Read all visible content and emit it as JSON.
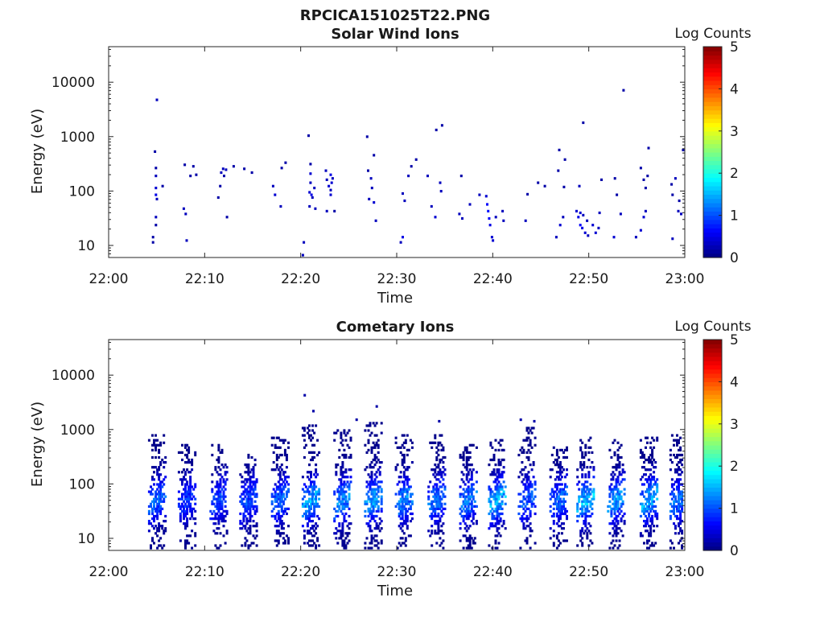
{
  "figure_title": "RPCICA151025T22.PNG",
  "chart_data": [
    {
      "type": "heatmap",
      "title": "Solar Wind Ions",
      "xlabel": "Time",
      "ylabel": "Energy (eV)",
      "x_ticks": [
        "22:00",
        "22:10",
        "22:20",
        "22:30",
        "22:40",
        "22:50",
        "23:00"
      ],
      "x_range": [
        "22:00",
        "23:00"
      ],
      "y_scale": "log",
      "y_range": [
        6,
        45000
      ],
      "y_ticks": [
        "10",
        "100",
        "1000",
        "10000"
      ],
      "colorbar": {
        "label": "Log Counts",
        "range": [
          0,
          5
        ],
        "ticks": [
          "0",
          "1",
          "2",
          "3",
          "4",
          "5"
        ],
        "colormap": "jet"
      },
      "grid": false,
      "cells": [
        [
          4.5,
          12,
          0.2
        ],
        [
          4.5,
          15,
          0.2
        ],
        [
          4.9,
          5000,
          0.3
        ],
        [
          4.7,
          560,
          0.2
        ],
        [
          4.8,
          280,
          0.2
        ],
        [
          4.8,
          200,
          0.3
        ],
        [
          4.8,
          120,
          0.4
        ],
        [
          4.8,
          90,
          0.5
        ],
        [
          4.9,
          75,
          0.3
        ],
        [
          4.8,
          35,
          0.3
        ],
        [
          4.8,
          25,
          0.2
        ],
        [
          5.5,
          130,
          0.2
        ],
        [
          7.7,
          50,
          0.3
        ],
        [
          7.9,
          40,
          0.3
        ],
        [
          8.0,
          13,
          0.3
        ],
        [
          7.8,
          320,
          0.2
        ],
        [
          8.4,
          200,
          0.2
        ],
        [
          8.7,
          300,
          0.2
        ],
        [
          9.0,
          210,
          0.2
        ],
        [
          11.3,
          80,
          0.2
        ],
        [
          11.5,
          130,
          0.2
        ],
        [
          11.6,
          230,
          0.3
        ],
        [
          11.8,
          270,
          0.3
        ],
        [
          11.9,
          200,
          0.2
        ],
        [
          12.1,
          260,
          0.3
        ],
        [
          12.2,
          35,
          0.2
        ],
        [
          12.9,
          300,
          0.2
        ],
        [
          14.0,
          270,
          0.2
        ],
        [
          14.8,
          230,
          0.2
        ],
        [
          17.0,
          130,
          0.3
        ],
        [
          17.2,
          90,
          0.4
        ],
        [
          17.8,
          55,
          0.3
        ],
        [
          17.9,
          280,
          0.2
        ],
        [
          18.3,
          350,
          0.2
        ],
        [
          20.1,
          7,
          0.3
        ],
        [
          20.2,
          12,
          0.3
        ],
        [
          20.7,
          1100,
          0.2
        ],
        [
          20.9,
          330,
          0.2
        ],
        [
          20.9,
          220,
          0.4
        ],
        [
          20.9,
          150,
          0.3
        ],
        [
          20.8,
          100,
          0.4
        ],
        [
          21.0,
          90,
          0.5
        ],
        [
          21.1,
          80,
          0.3
        ],
        [
          21.3,
          120,
          0.3
        ],
        [
          21.4,
          50,
          0.3
        ],
        [
          20.8,
          55,
          0.3
        ],
        [
          22.5,
          250,
          0.3
        ],
        [
          22.6,
          170,
          0.3
        ],
        [
          22.8,
          130,
          0.4
        ],
        [
          23.0,
          210,
          0.5
        ],
        [
          23.1,
          150,
          0.4
        ],
        [
          23.0,
          110,
          0.3
        ],
        [
          23.0,
          90,
          0.4
        ],
        [
          23.2,
          180,
          0.3
        ],
        [
          22.6,
          45,
          0.3
        ],
        [
          23.4,
          45,
          0.2
        ],
        [
          26.8,
          1050,
          0.2
        ],
        [
          26.9,
          250,
          0.2
        ],
        [
          27.2,
          180,
          0.3
        ],
        [
          27.3,
          120,
          0.3
        ],
        [
          27.0,
          75,
          0.3
        ],
        [
          27.5,
          65,
          0.4
        ],
        [
          27.7,
          30,
          0.3
        ],
        [
          27.5,
          480,
          0.2
        ],
        [
          30.3,
          12,
          0.3
        ],
        [
          30.5,
          15,
          0.5
        ],
        [
          30.5,
          95,
          0.3
        ],
        [
          30.7,
          70,
          0.3
        ],
        [
          31.1,
          200,
          0.3
        ],
        [
          31.4,
          300,
          0.2
        ],
        [
          31.9,
          400,
          0.2
        ],
        [
          33.1,
          200,
          0.3
        ],
        [
          33.5,
          55,
          0.3
        ],
        [
          33.9,
          35,
          0.4
        ],
        [
          34.0,
          1400,
          0.2
        ],
        [
          34.6,
          1700,
          0.2
        ],
        [
          34.4,
          150,
          0.3
        ],
        [
          34.5,
          105,
          0.3
        ],
        [
          36.6,
          200,
          0.2
        ],
        [
          36.4,
          40,
          0.3
        ],
        [
          36.7,
          33,
          0.3
        ],
        [
          37.5,
          60,
          0.3
        ],
        [
          38.5,
          90,
          0.3
        ],
        [
          39.2,
          85,
          0.4
        ],
        [
          39.3,
          60,
          0.6
        ],
        [
          39.4,
          45,
          0.7
        ],
        [
          39.5,
          33,
          0.6
        ],
        [
          39.6,
          25,
          0.5
        ],
        [
          39.8,
          15,
          0.4
        ],
        [
          39.9,
          13,
          0.4
        ],
        [
          40.2,
          35,
          0.3
        ],
        [
          40.9,
          45,
          0.3
        ],
        [
          41.0,
          30,
          0.3
        ],
        [
          43.3,
          30,
          0.3
        ],
        [
          43.5,
          92,
          0.2
        ],
        [
          44.6,
          150,
          0.2
        ],
        [
          45.3,
          130,
          0.2
        ],
        [
          46.5,
          15,
          0.3
        ],
        [
          46.9,
          25,
          0.4
        ],
        [
          47.2,
          35,
          0.3
        ],
        [
          46.7,
          250,
          0.2
        ],
        [
          47.3,
          125,
          0.2
        ],
        [
          46.8,
          600,
          0.2
        ],
        [
          47.4,
          400,
          0.2
        ],
        [
          48.6,
          45,
          0.4
        ],
        [
          48.8,
          35,
          0.5
        ],
        [
          49.0,
          25,
          0.6
        ],
        [
          49.2,
          22,
          0.5
        ],
        [
          49.5,
          18,
          0.4
        ],
        [
          49.7,
          30,
          0.3
        ],
        [
          49.0,
          42,
          0.4
        ],
        [
          49.3,
          38,
          0.3
        ],
        [
          49.8,
          16,
          0.3
        ],
        [
          48.9,
          130,
          0.3
        ],
        [
          49.3,
          1900,
          0.2
        ],
        [
          50.3,
          25,
          0.4
        ],
        [
          50.6,
          18,
          0.4
        ],
        [
          50.9,
          22,
          0.3
        ],
        [
          51.0,
          42,
          0.3
        ],
        [
          51.2,
          170,
          0.2
        ],
        [
          52.5,
          15,
          0.4
        ],
        [
          52.8,
          90,
          0.2
        ],
        [
          53.2,
          40,
          0.3
        ],
        [
          53.5,
          7500,
          0.2
        ],
        [
          52.6,
          180,
          0.2
        ],
        [
          54.8,
          15,
          0.3
        ],
        [
          55.3,
          20,
          0.4
        ],
        [
          55.6,
          35,
          0.4
        ],
        [
          55.8,
          45,
          0.3
        ],
        [
          56.0,
          200,
          0.2
        ],
        [
          55.3,
          280,
          0.2
        ],
        [
          55.6,
          170,
          0.2
        ],
        [
          55.8,
          120,
          0.2
        ],
        [
          56.1,
          650,
          0.2
        ],
        [
          58.6,
          14,
          0.3
        ],
        [
          58.5,
          140,
          0.2
        ],
        [
          58.6,
          90,
          0.2
        ],
        [
          58.9,
          180,
          0.3
        ],
        [
          59.2,
          45,
          0.3
        ],
        [
          59.5,
          40,
          0.3
        ],
        [
          59.3,
          70,
          0.2
        ],
        [
          59.7,
          600,
          0.2
        ]
      ]
    },
    {
      "type": "heatmap",
      "title": "Cometary Ions",
      "xlabel": "Time",
      "ylabel": "Energy (eV)",
      "x_ticks": [
        "22:00",
        "22:10",
        "22:20",
        "22:30",
        "22:40",
        "22:50",
        "23:00"
      ],
      "x_range": [
        "22:00",
        "23:00"
      ],
      "y_scale": "log",
      "y_range": [
        6,
        45000
      ],
      "y_ticks": [
        "10",
        "100",
        "1000",
        "10000"
      ],
      "colorbar": {
        "label": "Log Counts",
        "range": [
          0,
          5
        ],
        "ticks": [
          "0",
          "1",
          "2",
          "3",
          "4",
          "5"
        ],
        "colormap": "jet"
      },
      "grid": false,
      "bursts": [
        {
          "t": 5.0,
          "peak": 1.3,
          "top": 900
        },
        {
          "t": 8.1,
          "peak": 1.0,
          "top": 600
        },
        {
          "t": 11.4,
          "peak": 1.1,
          "top": 550
        },
        {
          "t": 14.5,
          "peak": 1.1,
          "top": 450
        },
        {
          "t": 17.8,
          "peak": 1.3,
          "top": 800
        },
        {
          "t": 21.0,
          "peak": 1.7,
          "top": 1300
        },
        {
          "t": 24.3,
          "peak": 1.5,
          "top": 1100
        },
        {
          "t": 27.5,
          "peak": 1.6,
          "top": 1400
        },
        {
          "t": 30.7,
          "peak": 1.5,
          "top": 900
        },
        {
          "t": 34.1,
          "peak": 1.4,
          "top": 900
        },
        {
          "t": 37.4,
          "peak": 1.4,
          "top": 600
        },
        {
          "t": 40.4,
          "peak": 1.8,
          "top": 700
        },
        {
          "t": 43.5,
          "peak": 1.2,
          "top": 1200
        },
        {
          "t": 46.8,
          "peak": 1.3,
          "top": 500
        },
        {
          "t": 49.6,
          "peak": 1.8,
          "top": 800
        },
        {
          "t": 52.8,
          "peak": 1.6,
          "top": 700
        },
        {
          "t": 56.2,
          "peak": 1.7,
          "top": 800
        },
        {
          "t": 59.3,
          "peak": 1.4,
          "top": 900
        }
      ],
      "isolated": [
        [
          20.3,
          4500,
          0.2
        ],
        [
          21.2,
          2300,
          0.2
        ],
        [
          25.7,
          1600,
          0.2
        ],
        [
          27.8,
          2800,
          0.2
        ],
        [
          34.3,
          1500,
          0.2
        ],
        [
          42.8,
          1600,
          0.2
        ],
        [
          44.2,
          1500,
          0.2
        ],
        [
          59.8,
          950,
          0.2
        ]
      ]
    }
  ]
}
